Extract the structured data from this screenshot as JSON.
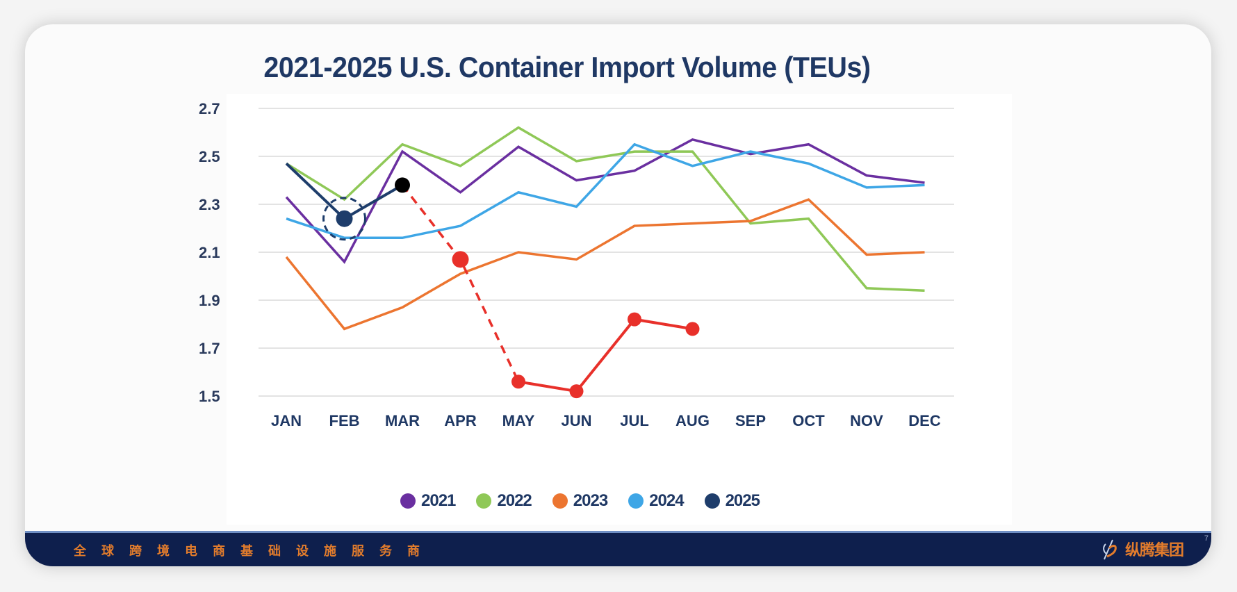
{
  "slide": {
    "footer_slogan": [
      "全",
      "球",
      "跨",
      "境",
      "电",
      "商",
      "基",
      "础",
      "设",
      "施",
      "服",
      "务",
      "商"
    ],
    "logo_text": "纵腾集团",
    "page_number": "7"
  },
  "chart_data": {
    "type": "line",
    "title": "2021-2025 U.S. Container Import Volume (TEUs)",
    "xlabel": "",
    "ylabel": "",
    "ylim": [
      1.5,
      2.7
    ],
    "yticks": [
      "2.7",
      "2.5",
      "2.3",
      "2.1",
      "1.9",
      "1.7",
      "1.5"
    ],
    "ytick_values": [
      2.7,
      2.5,
      2.3,
      2.1,
      1.9,
      1.7,
      1.5
    ],
    "grid": true,
    "legend_position": "bottom",
    "categories": [
      "JAN",
      "FEB",
      "MAR",
      "APR",
      "MAY",
      "JUN",
      "JUL",
      "AUG",
      "SEP",
      "OCT",
      "NOV",
      "DEC"
    ],
    "series": [
      {
        "name": "2021",
        "color": "#6a2fa0",
        "values": [
          2.33,
          2.06,
          2.52,
          2.35,
          2.54,
          2.4,
          2.44,
          2.57,
          2.51,
          2.55,
          2.42,
          2.39
        ]
      },
      {
        "name": "2022",
        "color": "#8fc857",
        "values": [
          2.47,
          2.32,
          2.55,
          2.46,
          2.62,
          2.48,
          2.52,
          2.52,
          2.22,
          2.24,
          1.95,
          1.94
        ]
      },
      {
        "name": "2023",
        "color": "#ec7530",
        "values": [
          2.08,
          1.78,
          1.87,
          2.01,
          2.1,
          2.07,
          2.21,
          2.22,
          2.23,
          2.32,
          2.09,
          2.1
        ]
      },
      {
        "name": "2024",
        "color": "#3ea6e6",
        "values": [
          2.24,
          2.16,
          2.16,
          2.21,
          2.35,
          2.29,
          2.55,
          2.46,
          2.52,
          2.47,
          2.37,
          2.38
        ]
      },
      {
        "name": "2025",
        "color": "#1e3d6b",
        "values": [
          2.47,
          2.24,
          2.38,
          null,
          null,
          null,
          null,
          null,
          null,
          null,
          null,
          null
        ]
      }
    ],
    "annotations": {
      "highlight_circle": {
        "category": "FEB",
        "series": "2025",
        "style": "dashed-circle"
      },
      "forecast_2025": {
        "color": "#e8302a",
        "dashed_from": {
          "category": "MAR",
          "value": 2.38
        },
        "points": [
          {
            "category": "APR",
            "value": 2.07
          },
          {
            "category": "MAY",
            "value": 1.56
          },
          {
            "category": "JUN",
            "value": 1.52
          },
          {
            "category": "JUL",
            "value": 1.82
          },
          {
            "category": "AUG",
            "value": 1.78
          }
        ],
        "solid_from": "MAY",
        "marker_mar_color": "#000000"
      }
    }
  }
}
